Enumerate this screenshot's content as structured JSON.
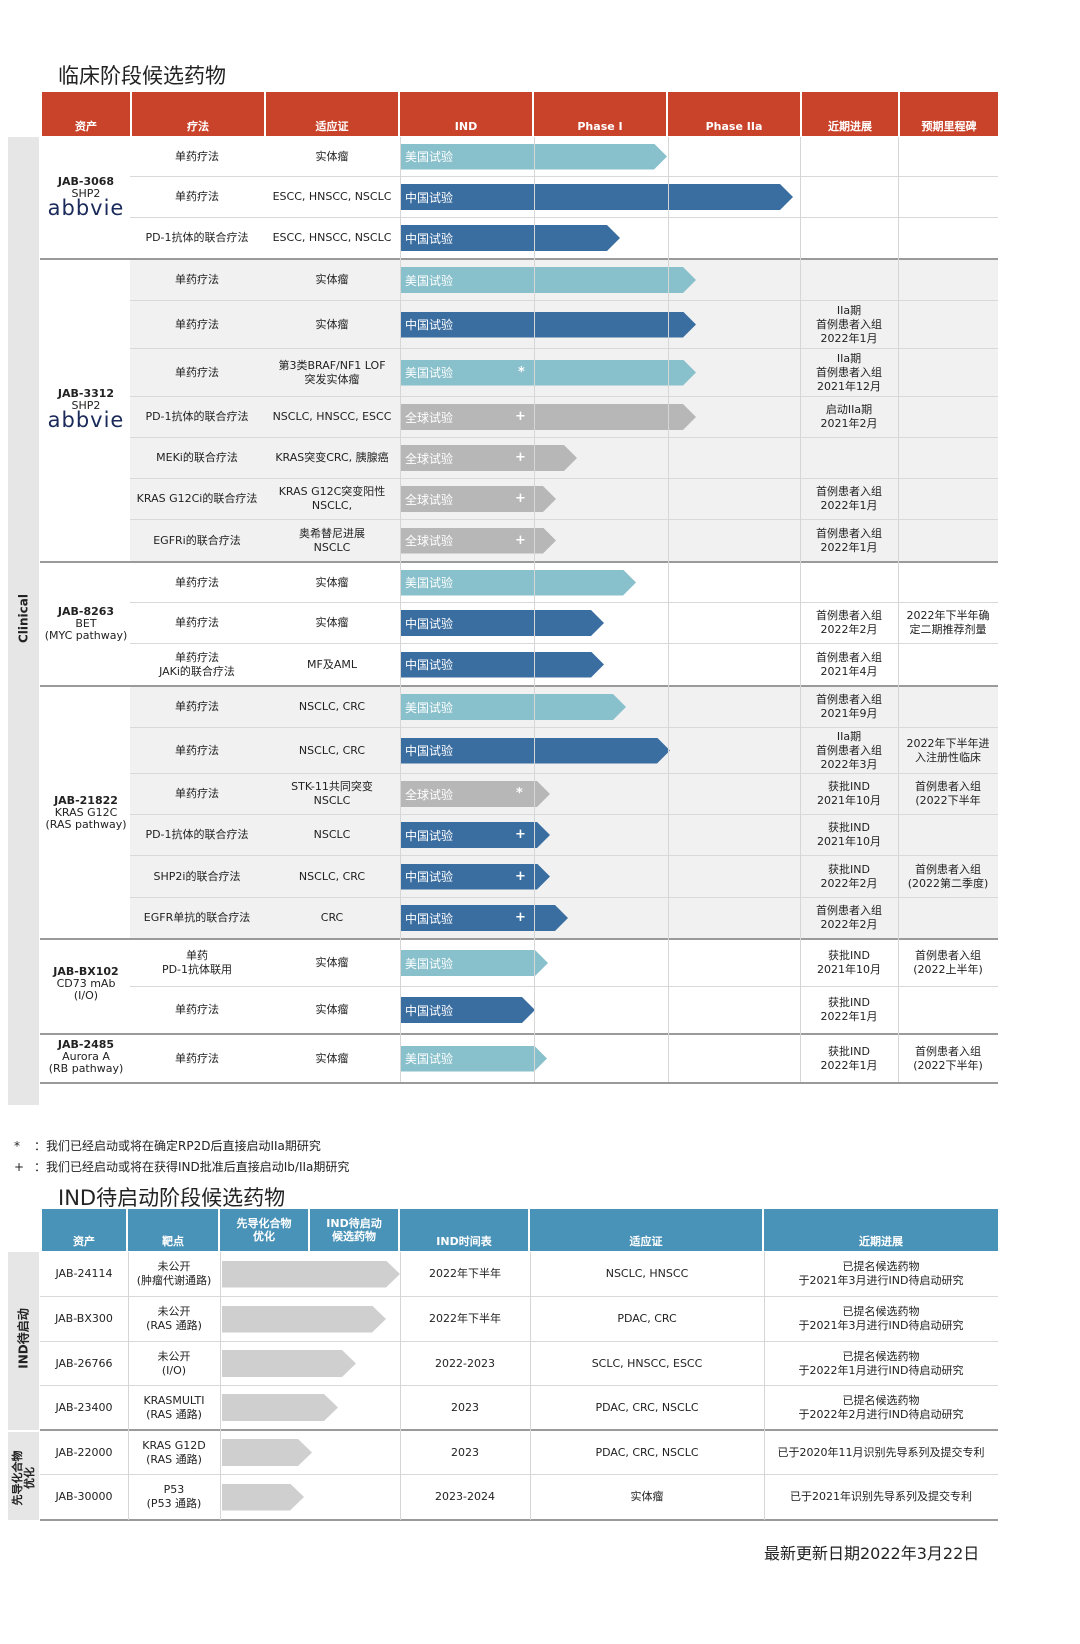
{
  "section1": {
    "title": "临床阶段候选药物",
    "headers": [
      "资产",
      "疗法",
      "适应证",
      "IND",
      "Phase I",
      "Phase IIa",
      "近期进展",
      "预期里程碑"
    ],
    "sidebar_label": "Clinical",
    "assets": [
      {
        "name": "JAB-3068",
        "sub": "SHP2",
        "logo": "abbvie"
      },
      {
        "name": "JAB-3312",
        "sub": "SHP2",
        "logo": "abbvie"
      },
      {
        "name": "JAB-8263",
        "sub": "BET\n(MYC pathway)"
      },
      {
        "name": "JAB-21822",
        "sub": "KRAS G12C\n(RAS pathway)"
      },
      {
        "name": "JAB-BX102",
        "sub": "CD73 mAb\n(I/O)"
      },
      {
        "name": "JAB-2485",
        "sub": "Aurora A\n(RB pathway)"
      }
    ],
    "rows": [
      {
        "therapy": "单药疗法",
        "indication": "实体瘤",
        "trial": "美国试验",
        "progress": "",
        "milestone": ""
      },
      {
        "therapy": "单药疗法",
        "indication": "ESCC, HNSCC, NSCLC",
        "trial": "中国试验",
        "progress": "",
        "milestone": ""
      },
      {
        "therapy": "PD-1抗体的联合疗法",
        "indication": "ESCC, HNSCC, NSCLC",
        "trial": "中国试验",
        "progress": "",
        "milestone": ""
      },
      {
        "therapy": "单药疗法",
        "indication": "实体瘤",
        "trial": "美国试验",
        "progress": "",
        "milestone": ""
      },
      {
        "therapy": "单药疗法",
        "indication": "实体瘤",
        "trial": "中国试验",
        "progress": "IIa期\n首例患者入组\n2022年1月",
        "milestone": ""
      },
      {
        "therapy": "单药疗法",
        "indication": "第3类BRAF/NF1 LOF\n突发实体瘤",
        "trial": "美国试验",
        "mark": "*",
        "progress": "IIa期\n首例患者入组\n2021年12月",
        "milestone": ""
      },
      {
        "therapy": "PD-1抗体的联合疗法",
        "indication": "NSCLC, HNSCC, ESCC",
        "trial": "全球试验",
        "mark": "+",
        "progress": "启动IIa期\n2021年2月",
        "milestone": ""
      },
      {
        "therapy": "MEKi的联合疗法",
        "indication": "KRAS突变CRC, 胰腺癌",
        "trial": "全球试验",
        "mark": "+",
        "progress": "",
        "milestone": ""
      },
      {
        "therapy": "KRAS G12Ci的联合疗法",
        "indication": "KRAS G12C突变阳性\nNSCLC,",
        "trial": "全球试验",
        "mark": "+",
        "progress": "首例患者入组\n2022年1月",
        "milestone": ""
      },
      {
        "therapy": "EGFRi的联合疗法",
        "indication": "奥希替尼进展\nNSCLC",
        "trial": "全球试验",
        "mark": "+",
        "progress": "首例患者入组\n2022年1月",
        "milestone": ""
      },
      {
        "therapy": "单药疗法",
        "indication": "实体瘤",
        "trial": "美国试验",
        "progress": "",
        "milestone": ""
      },
      {
        "therapy": "单药疗法",
        "indication": "实体瘤",
        "trial": "中国试验",
        "progress": "首例患者入组\n2022年2月",
        "milestone": "2022年下半年确\n定二期推荐剂量"
      },
      {
        "therapy": "单药疗法\nJAKi的联合疗法",
        "indication": "MF及AML",
        "trial": "中国试验",
        "progress": "首例患者入组\n2021年4月",
        "milestone": ""
      },
      {
        "therapy": "单药疗法",
        "indication": "NSCLC, CRC",
        "trial": "美国试验",
        "progress": "首例患者入组\n2021年9月",
        "milestone": ""
      },
      {
        "therapy": "单药疗法",
        "indication": "NSCLC, CRC",
        "trial": "中国试验",
        "progress": "IIa期\n首例患者入组\n2022年3月",
        "milestone": "2022年下半年进\n入注册性临床"
      },
      {
        "therapy": "单药疗法",
        "indication": "STK-11共同突变\nNSCLC",
        "trial": "全球试验",
        "mark": "*",
        "progress": "获批IND\n2021年10月",
        "milestone": "首例患者入组\n(2022下半年"
      },
      {
        "therapy": "PD-1抗体的联合疗法",
        "indication": "NSCLC",
        "trial": "中国试验",
        "mark": "+",
        "progress": "获批IND\n2021年10月",
        "milestone": ""
      },
      {
        "therapy": "SHP2i的联合疗法",
        "indication": "NSCLC, CRC",
        "trial": "中国试验",
        "mark": "+",
        "progress": "获批IND\n2022年2月",
        "milestone": "首例患者入组\n(2022第二季度)"
      },
      {
        "therapy": "EGFR单抗的联合疗法",
        "indication": "CRC",
        "trial": "中国试验",
        "mark": "+",
        "progress": "首例患者入组\n2022年2月",
        "milestone": ""
      },
      {
        "therapy": "单药\nPD-1抗体联用",
        "indication": "实体瘤",
        "trial": "美国试验",
        "progress": "获批IND\n2021年10月",
        "milestone": "首例患者入组\n(2022上半年)"
      },
      {
        "therapy": "单药疗法",
        "indication": "实体瘤",
        "trial": "中国试验",
        "progress": "获批IND\n2022年1月",
        "milestone": ""
      },
      {
        "therapy": "单药疗法",
        "indication": "实体瘤",
        "trial": "美国试验",
        "progress": "获批IND\n2022年1月",
        "milestone": "首例患者入组\n(2022下半年)"
      }
    ]
  },
  "footnotes": [
    {
      "mark": "*",
      "text": "：我们已经启动或将在确定RP2D后直接启动IIa期研究"
    },
    {
      "mark": "+",
      "text": "：我们已经启动或将在获得IND批准后直接启动Ib/IIa期研究"
    }
  ],
  "section2": {
    "title": "IND待启动阶段候选药物",
    "headers": [
      "资产",
      "靶点",
      "先导化合物\n优化",
      "IND待启动\n候选药物",
      "IND时间表",
      "适应证",
      "近期进展"
    ],
    "sidebar_labels": [
      "IND待启动",
      "先导化合物\n优化"
    ],
    "rows": [
      {
        "asset": "JAB-24114",
        "target": "未公开\n(肿瘤代谢通路)",
        "timeline": "2022年下半年",
        "indication": "NSCLC, HNSCC",
        "progress": "已提名候选药物\n于2021年3月进行IND待启动研究"
      },
      {
        "asset": "JAB-BX300",
        "target": "未公开\n(RAS 通路)",
        "timeline": "2022年下半年",
        "indication": "PDAC, CRC",
        "progress": "已提名候选药物\n于2021年3月进行IND待启动研究"
      },
      {
        "asset": "JAB-26766",
        "target": "未公开\n(I/O)",
        "timeline": "2022-2023",
        "indication": "SCLC, HNSCC, ESCC",
        "progress": "已提名候选药物\n于2022年1月进行IND待启动研究"
      },
      {
        "asset": "JAB-23400",
        "target": "KRASMULTI\n(RAS 通路)",
        "timeline": "2023",
        "indication": "PDAC, CRC, NSCLC",
        "progress": "已提名候选药物\n于2022年2月进行IND待启动研究"
      },
      {
        "asset": "JAB-22000",
        "target": "KRAS G12D\n(RAS 通路)",
        "timeline": "2023",
        "indication": "PDAC, CRC, NSCLC",
        "progress": "已于2020年11月识别先导系列及提交专利"
      },
      {
        "asset": "JAB-30000",
        "target": "P53\n(P53 通路)",
        "timeline": "2023-2024",
        "indication": "实体瘤",
        "progress": "已于2021年识别先导系列及提交专利"
      }
    ]
  },
  "update_date": "最新更新日期2022年3月22日"
}
